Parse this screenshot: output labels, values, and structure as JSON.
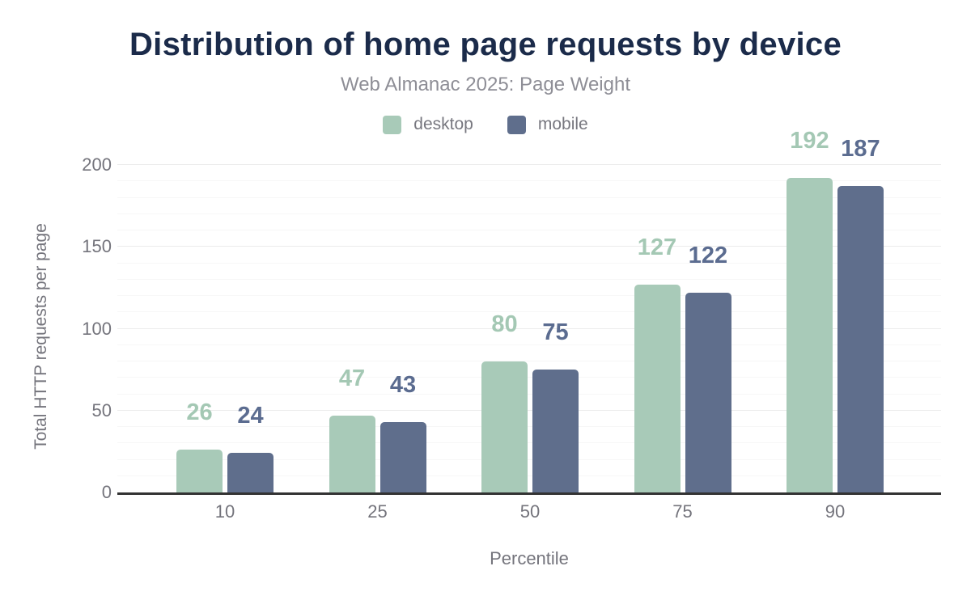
{
  "header": {
    "title": "Distribution of home page requests by device",
    "subtitle": "Web Almanac 2025: Page Weight"
  },
  "chart_data": {
    "type": "bar",
    "title": "Distribution of home page requests by device",
    "subtitle": "Web Almanac 2025: Page Weight",
    "categories": [
      "10",
      "25",
      "50",
      "75",
      "90"
    ],
    "series": [
      {
        "name": "desktop",
        "color": "#a8cab8",
        "label_color": "#a4c8b4",
        "values": [
          26,
          47,
          80,
          127,
          192
        ]
      },
      {
        "name": "mobile",
        "color": "#5f6e8c",
        "label_color": "#5b6c90",
        "values": [
          24,
          43,
          75,
          122,
          187
        ]
      }
    ],
    "xlabel": "Percentile",
    "ylabel": "Total HTTP requests per page",
    "ylim": [
      0,
      200
    ],
    "yticks": [
      0,
      50,
      100,
      150,
      200
    ],
    "grid": {
      "minor_step": 10,
      "major_step": 50,
      "minor_color": "#f7f7f7",
      "major_color": "#ececec",
      "axis_line_color": "#333333"
    },
    "legend_position": "top",
    "bar_value_labels": true
  },
  "colors": {
    "background": "#ffffff",
    "title_text": "#1b2b4a",
    "subtitle_text": "#8e8e96",
    "legend_text": "#77777f",
    "axis_text": "#74747c"
  }
}
